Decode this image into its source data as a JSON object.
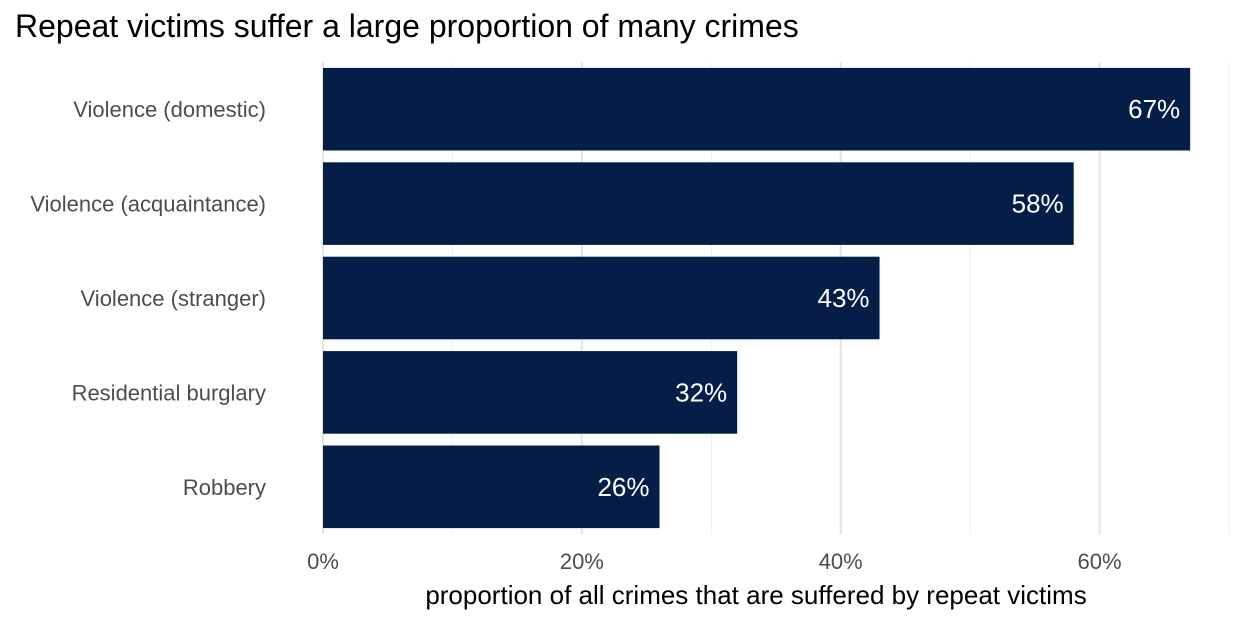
{
  "chart_data": {
    "type": "bar",
    "orientation": "horizontal",
    "title": "Repeat victims suffer a large proportion of many crimes",
    "xlabel": "proportion of all crimes that are suffered by repeat victims",
    "ylabel": "",
    "categories": [
      "Violence (domestic)",
      "Violence (acquaintance)",
      "Violence (stranger)",
      "Residential burglary",
      "Robbery"
    ],
    "values": [
      0.67,
      0.58,
      0.43,
      0.32,
      0.26
    ],
    "value_labels": [
      "67%",
      "58%",
      "43%",
      "32%",
      "26%"
    ],
    "xlim": [
      0,
      0.7
    ],
    "x_ticks": [
      0,
      0.2,
      0.4,
      0.6
    ],
    "x_tick_labels": [
      "0%",
      "20%",
      "40%",
      "60%"
    ],
    "grid": true,
    "legend": "none",
    "colors": {
      "bar": "#041e48",
      "grid_major": "#e3e3e3",
      "grid_minor": "#efefef"
    }
  }
}
